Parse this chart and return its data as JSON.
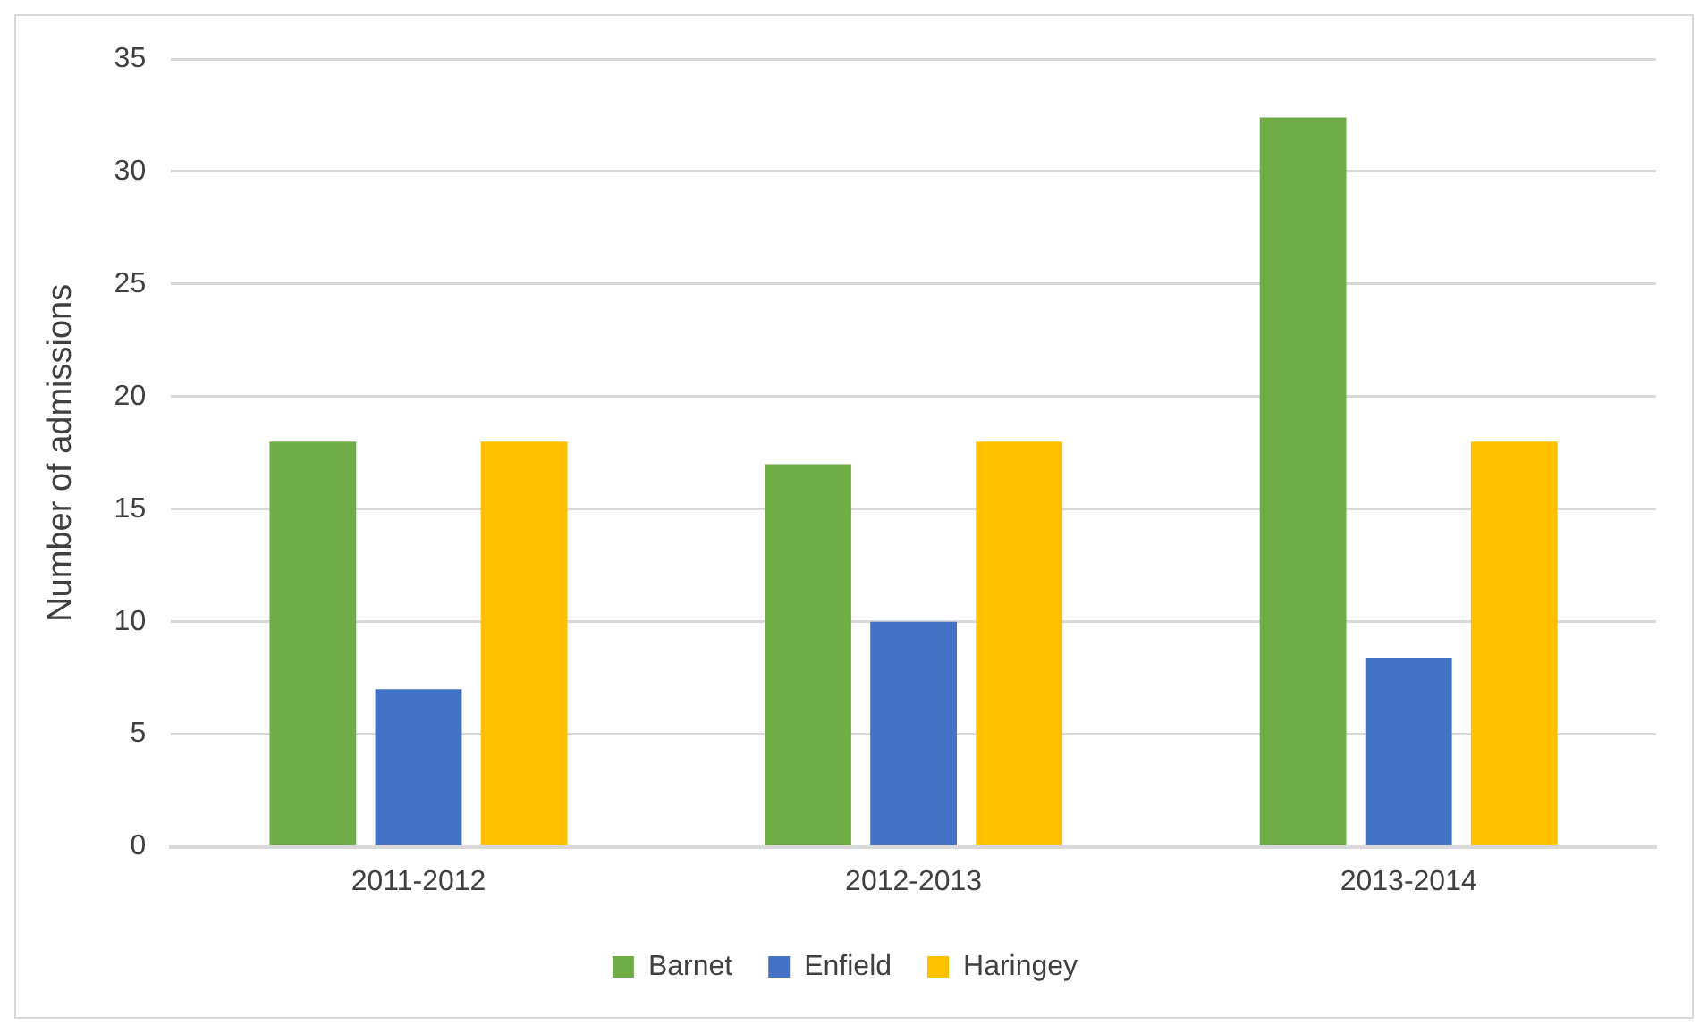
{
  "chart_data": {
    "type": "bar",
    "categories": [
      "2011-2012",
      "2012-2013",
      "2013-2014"
    ],
    "ylabel": "Number of admissions",
    "series": [
      {
        "name": "Barnet",
        "color": "#70ad47",
        "values": [
          18,
          17,
          32.4
        ]
      },
      {
        "name": "Enfield",
        "color": "#4472c4",
        "values": [
          7,
          10,
          8.4
        ]
      },
      {
        "name": "Haringey",
        "color": "#ffc000",
        "values": [
          18,
          18,
          18
        ]
      }
    ],
    "ylim": [
      0,
      35
    ],
    "yticks": [
      0,
      5,
      10,
      15,
      20,
      25,
      30,
      35
    ],
    "grid": "y",
    "legend": "bottom"
  }
}
